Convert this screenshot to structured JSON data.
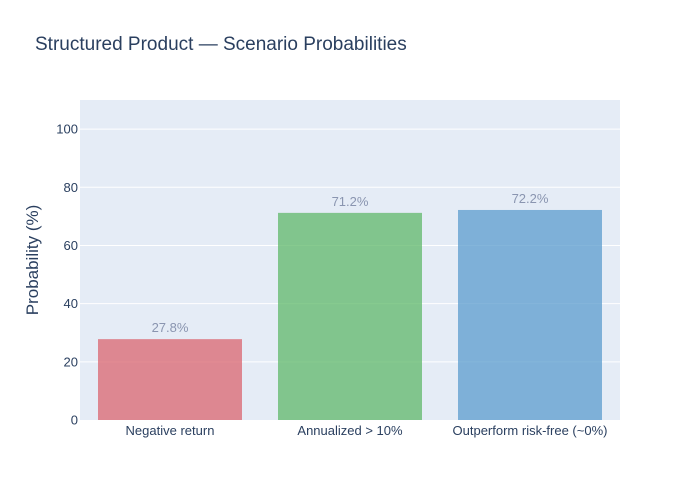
{
  "chart_data": {
    "type": "bar",
    "title": "Structured Product — Scenario Probabilities",
    "xlabel": "",
    "ylabel": "Probability (%)",
    "categories": [
      "Negative return",
      "Annualized > 10%",
      "Outperform risk-free (~0%)"
    ],
    "values": [
      27.8,
      71.2,
      72.2
    ],
    "data_labels": [
      "27.8%",
      "71.2%",
      "72.2%"
    ],
    "colors": [
      "#d9666f",
      "#5fb86a",
      "#5b9ccd"
    ],
    "ylim": [
      0,
      110
    ],
    "yticks": [
      0,
      20,
      40,
      60,
      80,
      100
    ],
    "ytick_labels": [
      "0",
      "20",
      "40",
      "60",
      "80",
      "100"
    ],
    "grid": true,
    "legend": "none",
    "plot_background": "#e5ecf6"
  }
}
